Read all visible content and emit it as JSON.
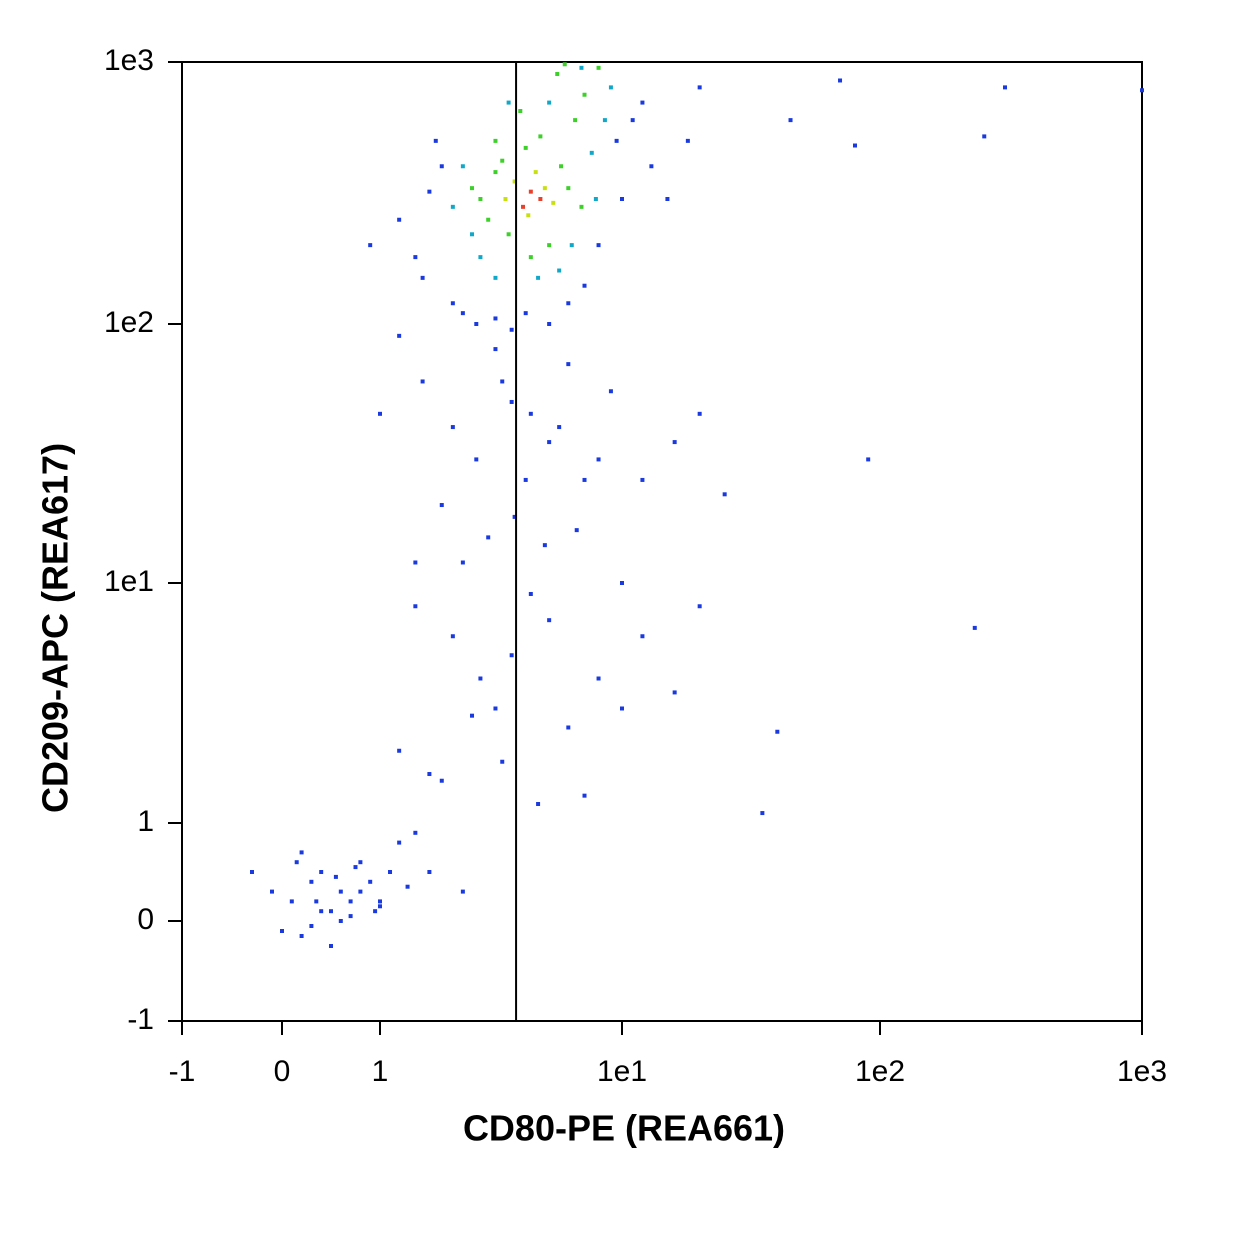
{
  "chart_data": {
    "type": "scatter",
    "xlabel": "CD80-PE (REA661)",
    "ylabel": "CD209-APC (REA617)",
    "xlim": [
      -1,
      1000
    ],
    "ylim": [
      -1,
      1000
    ],
    "xticks": [
      -1,
      0,
      1,
      {
        "value": 10,
        "label": "1e1"
      },
      {
        "value": 100,
        "label": "1e2"
      },
      {
        "value": 1000,
        "label": "1e3"
      }
    ],
    "yticks": [
      -1,
      0,
      1,
      {
        "value": 10,
        "label": "1e1"
      },
      {
        "value": 100,
        "label": "1e2"
      },
      {
        "value": 1000,
        "label": "1e3"
      }
    ],
    "gate": 3.65,
    "groups": [
      {
        "color": "#1a3ae0",
        "x": [
          1.2,
          1.5,
          1.8,
          0.9,
          1.6,
          2.0,
          9.5,
          11,
          12,
          13,
          10,
          1.4,
          1.7,
          2.2,
          2.5,
          3.0,
          3.5,
          4.0,
          5.0,
          6.0,
          7.0,
          8.0,
          15,
          18,
          20,
          45,
          70,
          80,
          250,
          300,
          1000,
          1.5,
          2.0,
          2.5,
          3.0,
          3.5,
          4.2,
          5.0,
          6.0,
          7.0,
          1.2,
          1.8,
          2.8,
          3.2,
          4.0,
          5.5,
          8.0,
          9.0,
          12,
          16,
          20,
          25,
          90,
          1.0,
          2.2,
          3.6,
          4.8,
          6.5,
          1.4,
          1.4,
          2.0,
          2.6,
          3.0,
          3.5,
          4.2,
          5.0,
          6.0,
          8.0,
          10,
          12,
          16,
          20,
          40,
          230,
          1.2,
          1.8,
          2.4,
          3.2,
          4.5,
          7.0,
          10,
          35,
          1.6,
          -0.3,
          -0.1,
          0.1,
          0.2,
          0.3,
          0.4,
          0.5,
          0.6,
          0.7,
          0.8,
          0.9,
          1.0,
          1.1,
          1.2,
          1.4,
          0.0,
          0.2,
          0.4,
          0.6,
          0.8,
          1.0,
          0.3,
          0.5,
          0.7,
          1.3,
          1.6,
          2.2,
          0.15,
          0.35,
          0.55,
          0.75,
          0.95
        ],
        "y": [
          250,
          150,
          400,
          200,
          320,
          120,
          500,
          600,
          700,
          400,
          300,
          180,
          500,
          110,
          100,
          105,
          95,
          110,
          100,
          120,
          140,
          200,
          300,
          500,
          800,
          600,
          850,
          480,
          520,
          800,
          780,
          60,
          40,
          30,
          80,
          50,
          45,
          35,
          70,
          25,
          90,
          20,
          15,
          60,
          25,
          40,
          30,
          55,
          25,
          35,
          45,
          22,
          30,
          45,
          12,
          18,
          14,
          16,
          12,
          8,
          6,
          4,
          3,
          5,
          9,
          7,
          2.5,
          4,
          10,
          6,
          3.5,
          8,
          2.4,
          6.5,
          2,
          1.5,
          2.8,
          1.8,
          1.2,
          1.3,
          3,
          1.1,
          1.6,
          0.5,
          0.3,
          0.2,
          0.7,
          0.4,
          0.5,
          0.1,
          0.3,
          0.2,
          0.6,
          0.4,
          0.2,
          0.5,
          0.8,
          0.9,
          -0.1,
          -0.15,
          0.1,
          0.0,
          0.3,
          0.15,
          -0.05,
          -0.25,
          0.05,
          0.35,
          0.5,
          0.3,
          0.6,
          0.2,
          0.45,
          0.55,
          0.1
        ]
      },
      {
        "color": "#10a8c8",
        "x": [
          2.0,
          2.2,
          7.5,
          8.5,
          6.2,
          2.6,
          3.4,
          4.5,
          5.5,
          9.0,
          2.4,
          7.8,
          3.0,
          5.0,
          6.8
        ],
        "y": [
          280,
          400,
          450,
          600,
          200,
          180,
          700,
          150,
          160,
          800,
          220,
          300,
          150,
          700,
          950
        ]
      },
      {
        "color": "#3cd028",
        "x": [
          2.6,
          3.0,
          3.4,
          5.6,
          6.0,
          2.8,
          4.0,
          4.6,
          3.2,
          5.0,
          6.4,
          3.8,
          2.4,
          7.0,
          5.4,
          4.2,
          3.0,
          6.8,
          8.0,
          5.8
        ],
        "y": [
          300,
          380,
          220,
          400,
          330,
          250,
          470,
          520,
          420,
          200,
          600,
          650,
          330,
          750,
          900,
          180,
          500,
          280,
          950,
          980
        ]
      },
      {
        "color": "#c8e010",
        "x": [
          3.6,
          4.8,
          4.1,
          5.2,
          3.3,
          4.4
        ],
        "y": [
          350,
          330,
          260,
          290,
          300,
          380
        ]
      },
      {
        "color": "#e8402a",
        "x": [
          4.2,
          4.6,
          3.9
        ],
        "y": [
          320,
          300,
          280
        ]
      }
    ]
  }
}
